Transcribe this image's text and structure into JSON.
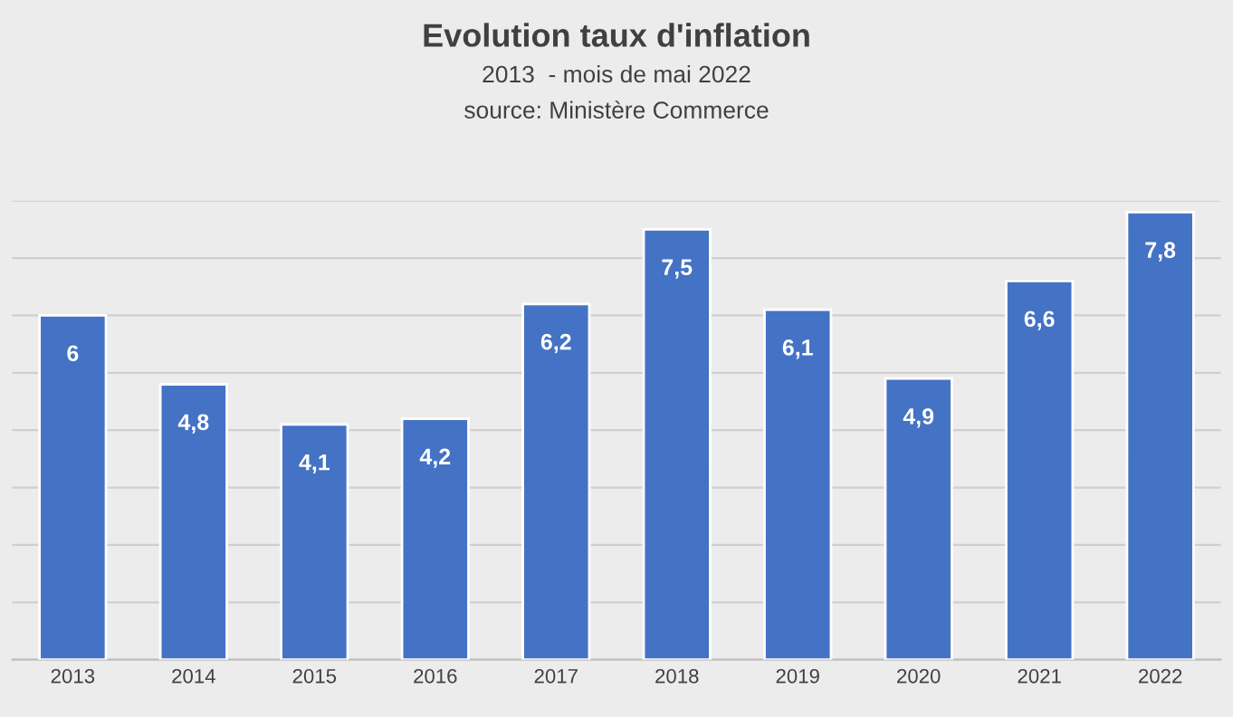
{
  "chart_data": {
    "type": "bar",
    "title": "Evolution taux d'inflation",
    "subtitle": "2013  - mois de mai 2022",
    "annotations": [
      "source: Ministère Commerce"
    ],
    "categories": [
      "2013",
      "2014",
      "2015",
      "2016",
      "2017",
      "2018",
      "2019",
      "2020",
      "2021",
      "2022"
    ],
    "values": [
      6,
      4.8,
      4.1,
      4.2,
      6.2,
      7.5,
      6.1,
      4.9,
      6.6,
      7.8
    ],
    "value_labels": [
      "6",
      "4,8",
      "4,1",
      "4,2",
      "6,2",
      "7,5",
      "6,1",
      "4,9",
      "6,6",
      "7,8"
    ],
    "color": "#4472c4",
    "ylim": [
      0,
      8
    ],
    "yticks": [
      {
        "value": 0,
        "label": null
      },
      {
        "value": 1,
        "label": null
      },
      {
        "value": 2,
        "label": null
      },
      {
        "value": 3,
        "label": null
      },
      {
        "value": 4,
        "label": null
      },
      {
        "value": 5,
        "label": null
      },
      {
        "value": 6,
        "label": null
      },
      {
        "value": 7,
        "label": null
      },
      {
        "value": 8,
        "label": null
      }
    ],
    "tick_labels": "x",
    "grid": "y",
    "legend": false
  }
}
